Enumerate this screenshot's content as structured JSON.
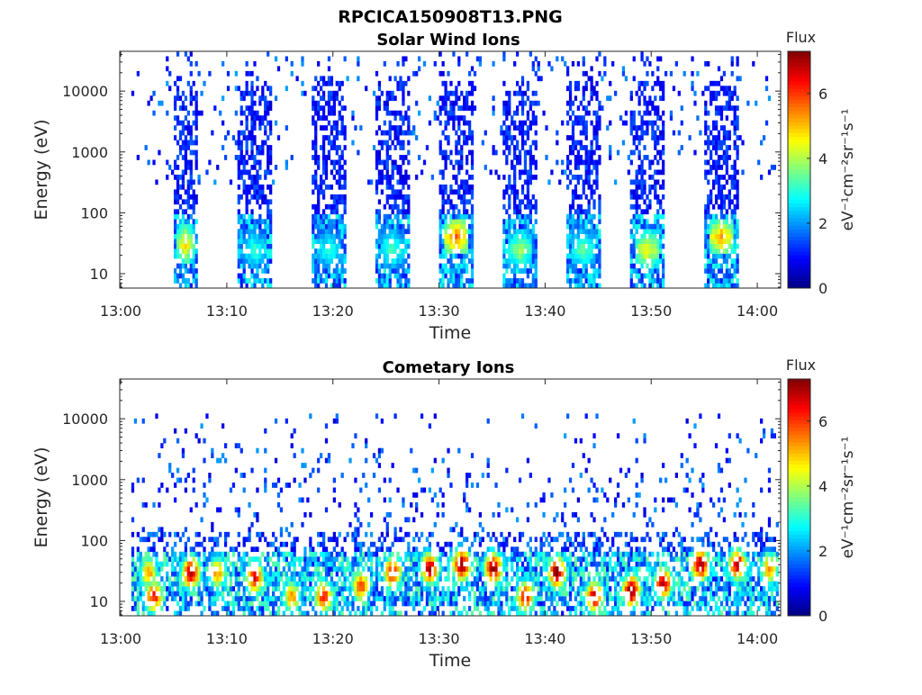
{
  "figure": {
    "title": "RPCICA150908T13.PNG"
  },
  "colormap": {
    "name": "jet",
    "stops": [
      "#00007f",
      "#0000ff",
      "#007fff",
      "#00ffff",
      "#7fff7f",
      "#ffff00",
      "#ff7f00",
      "#ff0000",
      "#7f0000"
    ]
  },
  "chart_data": [
    {
      "type": "heatmap",
      "title": "Solar Wind Ions",
      "xlabel": "Time",
      "ylabel": "Energy (eV)",
      "x_range": [
        "13:01",
        "14:02"
      ],
      "x_ticks": [
        "13:00",
        "13:10",
        "13:20",
        "13:30",
        "13:40",
        "13:50",
        "14:00"
      ],
      "y_scale": "log",
      "y_range": [
        5.8,
        45000
      ],
      "y_ticks": [
        {
          "value": 10,
          "label": "10"
        },
        {
          "value": 100,
          "label": "100"
        },
        {
          "value": 1000,
          "label": "1000"
        },
        {
          "value": 10000,
          "label": "10000"
        }
      ],
      "colorbar": {
        "title": "Flux",
        "label": "eV⁻¹cm⁻²sr⁻¹s⁻¹",
        "range": [
          0,
          7.3
        ],
        "ticks": [
          "0",
          "2",
          "4",
          "6"
        ]
      },
      "bursts": [
        {
          "start": "13:05",
          "end": "13:07",
          "peak_energy_eV": 30,
          "peak_flux": 4.8
        },
        {
          "start": "13:11",
          "end": "13:14",
          "peak_energy_eV": 25,
          "peak_flux": 3.0
        },
        {
          "start": "13:18",
          "end": "13:21",
          "peak_energy_eV": 25,
          "peak_flux": 3.0
        },
        {
          "start": "13:24",
          "end": "13:27",
          "peak_energy_eV": 25,
          "peak_flux": 3.2
        },
        {
          "start": "13:30",
          "end": "13:33",
          "peak_energy_eV": 40,
          "peak_flux": 5.6
        },
        {
          "start": "13:36",
          "end": "13:39",
          "peak_energy_eV": 25,
          "peak_flux": 3.8
        },
        {
          "start": "13:42",
          "end": "13:45",
          "peak_energy_eV": 25,
          "peak_flux": 3.4
        },
        {
          "start": "13:48",
          "end": "13:51",
          "peak_energy_eV": 25,
          "peak_flux": 4.6
        },
        {
          "start": "13:55",
          "end": "13:58",
          "peak_energy_eV": 40,
          "peak_flux": 5.2
        }
      ]
    },
    {
      "type": "heatmap",
      "title": "Cometary Ions",
      "xlabel": "Time",
      "ylabel": "Energy (eV)",
      "x_range": [
        "13:01",
        "14:02"
      ],
      "x_ticks": [
        "13:00",
        "13:10",
        "13:20",
        "13:30",
        "13:40",
        "13:50",
        "14:00"
      ],
      "y_scale": "log",
      "y_range": [
        5.8,
        45000
      ],
      "y_ticks": [
        {
          "value": 10,
          "label": "10"
        },
        {
          "value": 100,
          "label": "100"
        },
        {
          "value": 1000,
          "label": "1000"
        },
        {
          "value": 10000,
          "label": "10000"
        }
      ],
      "colorbar": {
        "title": "Flux",
        "label": "eV⁻¹cm⁻²sr⁻¹s⁻¹",
        "range": [
          0,
          7.3
        ],
        "ticks": [
          "0",
          "2",
          "4",
          "6"
        ]
      },
      "hotspots": [
        {
          "time": "13:02.5",
          "energy_eV": 30,
          "flux": 5.0
        },
        {
          "time": "13:03",
          "energy_eV": 12,
          "flux": 6.0
        },
        {
          "time": "13:06.5",
          "energy_eV": 30,
          "flux": 6.8
        },
        {
          "time": "13:09",
          "energy_eV": 30,
          "flux": 5.0
        },
        {
          "time": "13:12.5",
          "energy_eV": 25,
          "flux": 6.2
        },
        {
          "time": "13:16",
          "energy_eV": 12,
          "flux": 5.0
        },
        {
          "time": "13:19",
          "energy_eV": 12,
          "flux": 6.0
        },
        {
          "time": "13:22.5",
          "energy_eV": 18,
          "flux": 5.6
        },
        {
          "time": "13:25.5",
          "energy_eV": 30,
          "flux": 6.2
        },
        {
          "time": "13:29",
          "energy_eV": 35,
          "flux": 6.6
        },
        {
          "time": "13:32",
          "energy_eV": 40,
          "flux": 7.0
        },
        {
          "time": "13:35",
          "energy_eV": 35,
          "flux": 6.8
        },
        {
          "time": "13:38",
          "energy_eV": 12,
          "flux": 6.0
        },
        {
          "time": "13:41",
          "energy_eV": 30,
          "flux": 7.0
        },
        {
          "time": "13:44.5",
          "energy_eV": 12,
          "flux": 6.4
        },
        {
          "time": "13:48",
          "energy_eV": 15,
          "flux": 7.0
        },
        {
          "time": "13:51",
          "energy_eV": 20,
          "flux": 6.6
        },
        {
          "time": "13:54.5",
          "energy_eV": 40,
          "flux": 6.8
        },
        {
          "time": "13:58",
          "energy_eV": 40,
          "flux": 6.4
        },
        {
          "time": "14:01",
          "energy_eV": 35,
          "flux": 5.0
        }
      ]
    }
  ]
}
